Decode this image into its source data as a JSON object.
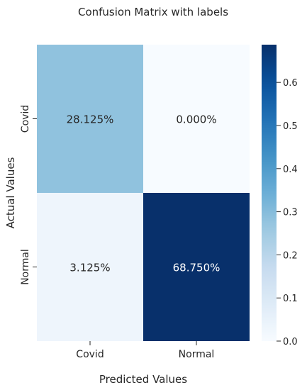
{
  "chart_data": {
    "type": "heatmap",
    "title": "Confusion Matrix with labels",
    "xlabel": "Predicted Values",
    "ylabel": "Actual Values",
    "x_categories": [
      "Covid",
      "Normal"
    ],
    "y_categories": [
      "Covid",
      "Normal"
    ],
    "values": [
      [
        0.28125,
        0.0
      ],
      [
        0.03125,
        0.6875
      ]
    ],
    "cell_labels": [
      [
        "28.125%",
        "0.000%"
      ],
      [
        "3.125%",
        "68.750%"
      ]
    ],
    "colorbar": {
      "range": [
        0.0,
        0.6875
      ],
      "ticks": [
        0.0,
        0.1,
        0.2,
        0.3,
        0.4,
        0.5,
        0.6
      ],
      "tick_labels": [
        "0.0",
        "0.1",
        "0.2",
        "0.3",
        "0.4",
        "0.5",
        "0.6"
      ],
      "colormap": "Blues"
    },
    "colors": {
      "low": "#f7fbff",
      "high": "#08306b"
    }
  }
}
